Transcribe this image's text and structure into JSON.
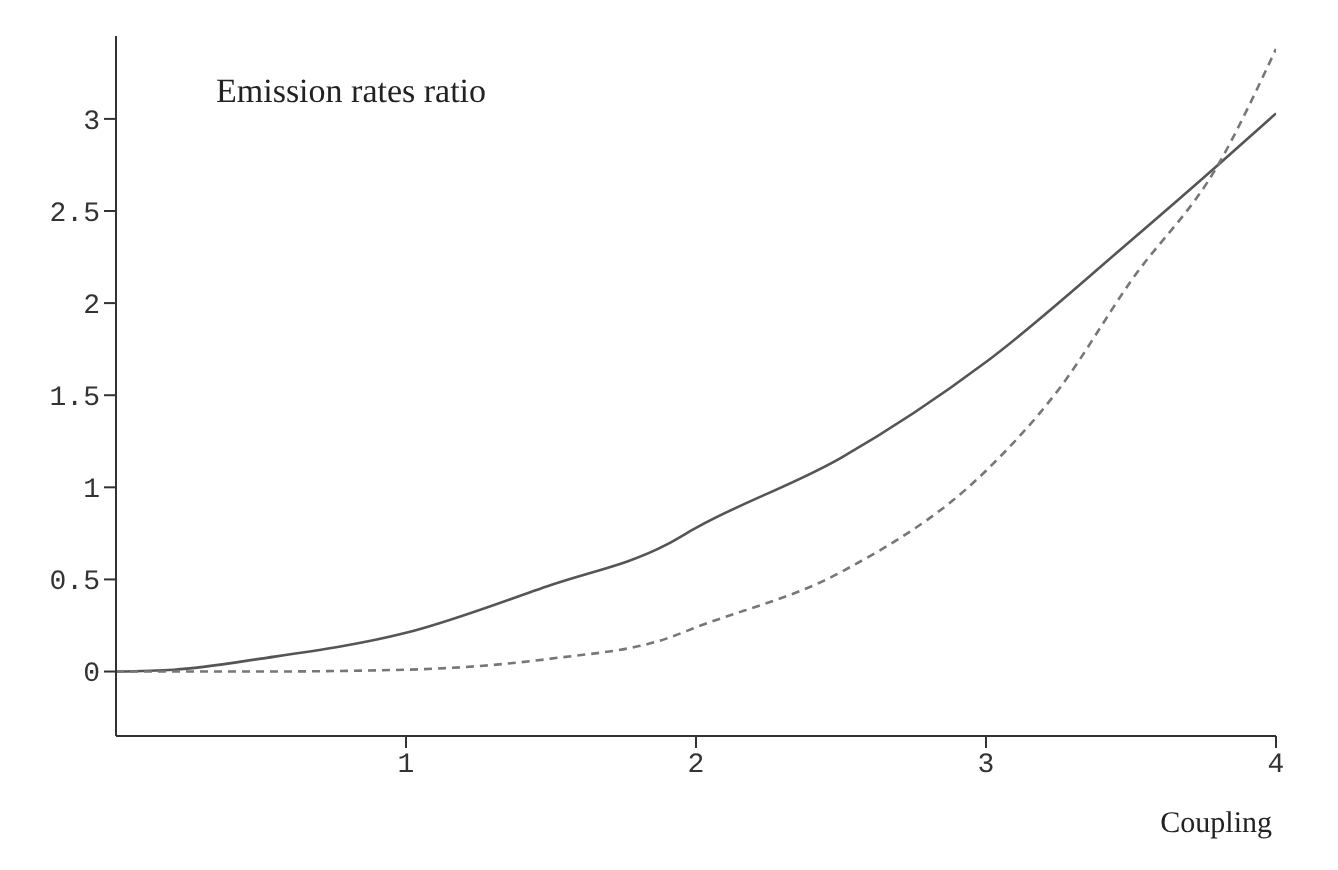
{
  "chart_data": {
    "type": "line",
    "annotations": [
      "Emission rates ratio"
    ],
    "xlabel": "Coupling",
    "xlim": [
      0,
      4
    ],
    "xticks": [
      1,
      2,
      3,
      4
    ],
    "ylim": [
      -0.35,
      3.45
    ],
    "yticks": [
      0,
      0.5,
      1,
      1.5,
      2,
      2.5,
      3
    ],
    "marker": "none",
    "series": [
      {
        "color": "#555555",
        "line_style": "solid",
        "x": [
          0,
          0.2,
          0.5,
          1,
          1.5,
          1.9,
          2,
          2.5,
          3,
          3.5,
          3.8,
          4
        ],
        "values": [
          0,
          0.01,
          0.07,
          0.21,
          0.47,
          0.69,
          0.78,
          1.16,
          1.68,
          2.34,
          2.75,
          3.03
        ]
      },
      {
        "color": "#777777",
        "line_style": "dashed",
        "x": [
          0,
          0.5,
          1,
          1.5,
          1.9,
          2,
          2.5,
          3,
          3.25,
          3.5,
          3.8,
          4
        ],
        "values": [
          0,
          0,
          0.01,
          0.07,
          0.18,
          0.24,
          0.54,
          1.09,
          1.53,
          2.12,
          2.75,
          3.38
        ]
      }
    ]
  }
}
